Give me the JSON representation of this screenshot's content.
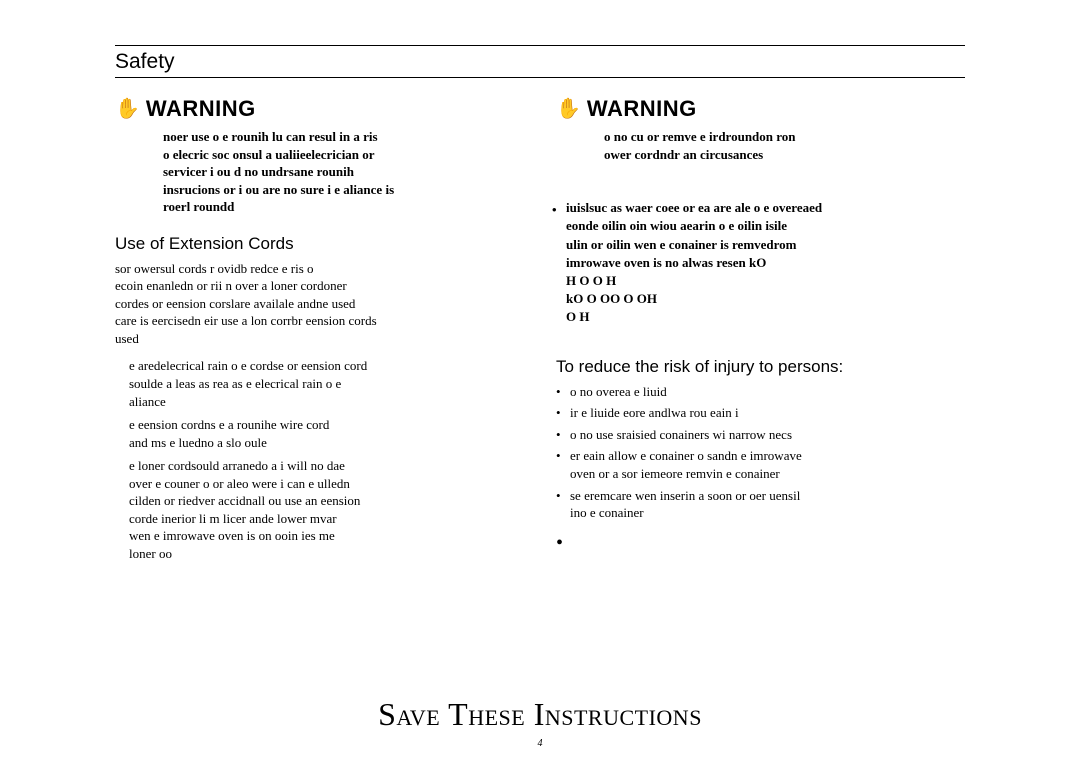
{
  "page": {
    "safety_title": "Safety",
    "save_instructions": "Save These Instructions",
    "page_number": "4"
  },
  "left": {
    "warning_label": "WARNING",
    "warning_body": "noer use o e rounih lu can resul in a ris\no elecric soc onsul a ualiieelecrician or\nservicer i ou d no undrsane rounih\ninsrucions or i ou are no sure i e aliance is\nroerl roundd",
    "ext_heading": "Use of Extension Cords",
    "ext_intro": "sor owersul cords r              ovidb redce e ris o\necoin enanledn or rii              n over a loner cordoner\ncordes or eension corslare availale andne used\ncare is eercisedn eir use  a lon corrbr eension cords\nused",
    "ext_items": [
      "e aredelecrical rain o e cordse or eension cord\nsoulde a leas as rea as         e elecrical      rain o e\naliance",
      "e eension cordns e a rounihe wire cord\nand ms e luedno a slo oule",
      "e loner cordsould arranedo a i will no dae\nover e couner o or aleo were i can e ulledn\ncilden or riedver accidnall  ou use an eension\ncorde inerior li m                  licer ande lower mvar\nwen e imrowave oven is on ooin ies me\nloner oo"
    ]
  },
  "right": {
    "warning_label": "WARNING",
    "warning_body": "o no cu or remve e irdroundon ron\nower cordndr an circusances",
    "liquids_body": "iuislsuc as waer coee or ea are ale o e overeaed\neonde oilin oin wiou aearin o e oilin isile\nulin or oilin wen e conainer is remvedrom\nimrowave oven is no alwas resen kO\n H                                           O O H\nkO   O  OO O OH\n  O H",
    "reduce_heading": "To reduce the risk of    injury to persons:",
    "reduce_items": [
      "o no overea e liuid",
      "ir e liuide eore andlwa rou eain i",
      "o no use sraisied                     conainers wi       narrow necs",
      "er eain allow e conainer o sandn e imrowave\noven or a sor iemeore remvin e conainer",
      "se eremcare wen inserin a soon or oer uensil\nino e conainer"
    ]
  }
}
